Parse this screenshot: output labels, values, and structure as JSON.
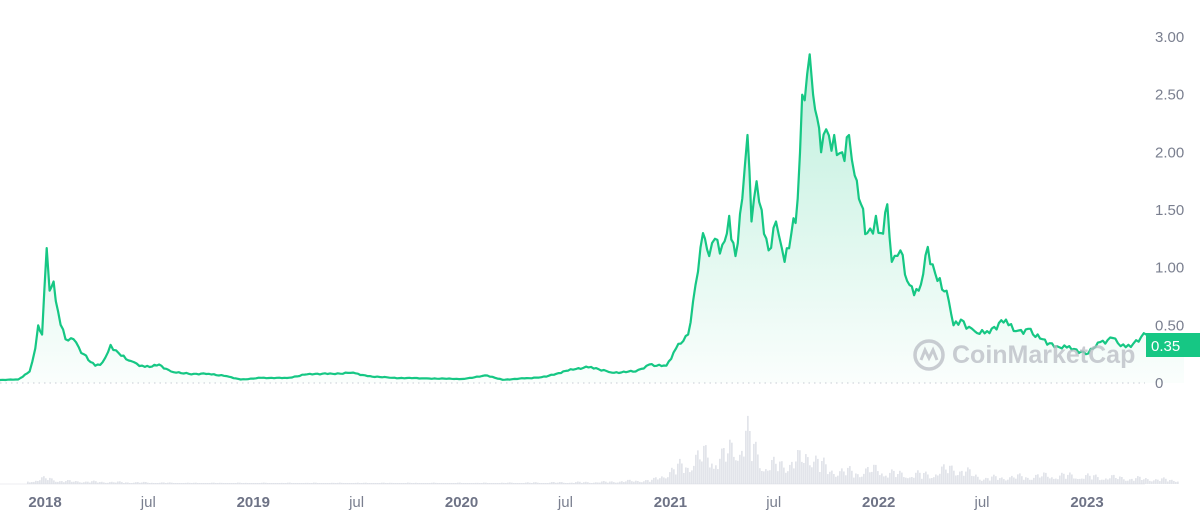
{
  "chart_data": {
    "type": "area",
    "ylabel": "",
    "xlabel": "",
    "ylim": [
      0,
      3.0
    ],
    "xlim": [
      "2017-10-01",
      "2023-06-20"
    ],
    "y_ticks": [
      "0",
      "0.50",
      "1.00",
      "1.50",
      "2.00",
      "2.50",
      "3.00"
    ],
    "y_tick_values": [
      0,
      0.5,
      1.0,
      1.5,
      2.0,
      2.5,
      3.0
    ],
    "x_ticks": [
      {
        "label": "2018",
        "date": "2018-01-01",
        "major": true
      },
      {
        "label": "jul",
        "date": "2018-07-01",
        "major": false
      },
      {
        "label": "2019",
        "date": "2019-01-01",
        "major": true
      },
      {
        "label": "jul",
        "date": "2019-07-01",
        "major": false
      },
      {
        "label": "2020",
        "date": "2020-01-01",
        "major": true
      },
      {
        "label": "jul",
        "date": "2020-07-01",
        "major": false
      },
      {
        "label": "2021",
        "date": "2021-01-01",
        "major": true
      },
      {
        "label": "jul",
        "date": "2021-07-01",
        "major": false
      },
      {
        "label": "2022",
        "date": "2022-01-01",
        "major": true
      },
      {
        "label": "jul",
        "date": "2022-07-01",
        "major": false
      },
      {
        "label": "2023",
        "date": "2023-01-01",
        "major": true
      }
    ],
    "current_price_label": "0.35",
    "grid": false,
    "legend": "none",
    "colors": {
      "line": "#16c784",
      "down": "#ea3943",
      "volume": "#d5d8e0",
      "axis_text": "#7a7f8f",
      "price_tag": "#16c784"
    },
    "price": [
      [
        "2017-10-01",
        0.025
      ],
      [
        "2017-11-15",
        0.03
      ],
      [
        "2017-12-05",
        0.1
      ],
      [
        "2017-12-15",
        0.3
      ],
      [
        "2017-12-20",
        0.5
      ],
      [
        "2017-12-27",
        0.42
      ],
      [
        "2018-01-04",
        1.17
      ],
      [
        "2018-01-09",
        0.8
      ],
      [
        "2018-01-16",
        0.88
      ],
      [
        "2018-01-24",
        0.62
      ],
      [
        "2018-02-06",
        0.38
      ],
      [
        "2018-02-20",
        0.38
      ],
      [
        "2018-03-10",
        0.25
      ],
      [
        "2018-03-30",
        0.15
      ],
      [
        "2018-04-12",
        0.18
      ],
      [
        "2018-04-26",
        0.33
      ],
      [
        "2018-05-10",
        0.26
      ],
      [
        "2018-06-01",
        0.19
      ],
      [
        "2018-06-25",
        0.14
      ],
      [
        "2018-07-20",
        0.16
      ],
      [
        "2018-08-10",
        0.1
      ],
      [
        "2018-09-10",
        0.08
      ],
      [
        "2018-10-15",
        0.08
      ],
      [
        "2018-11-15",
        0.06
      ],
      [
        "2018-12-10",
        0.03
      ],
      [
        "2019-01-15",
        0.045
      ],
      [
        "2019-03-01",
        0.043
      ],
      [
        "2019-04-10",
        0.08
      ],
      [
        "2019-05-20",
        0.08
      ],
      [
        "2019-06-25",
        0.09
      ],
      [
        "2019-07-20",
        0.06
      ],
      [
        "2019-09-01",
        0.045
      ],
      [
        "2019-11-01",
        0.04
      ],
      [
        "2020-01-01",
        0.035
      ],
      [
        "2020-02-15",
        0.065
      ],
      [
        "2020-03-13",
        0.028
      ],
      [
        "2020-04-20",
        0.04
      ],
      [
        "2020-05-20",
        0.05
      ],
      [
        "2020-06-15",
        0.08
      ],
      [
        "2020-07-10",
        0.12
      ],
      [
        "2020-08-15",
        0.14
      ],
      [
        "2020-09-20",
        0.09
      ],
      [
        "2020-11-01",
        0.1
      ],
      [
        "2020-11-25",
        0.16
      ],
      [
        "2020-12-25",
        0.15
      ],
      [
        "2021-01-15",
        0.34
      ],
      [
        "2021-02-01",
        0.42
      ],
      [
        "2021-02-14",
        0.85
      ],
      [
        "2021-02-27",
        1.3
      ],
      [
        "2021-03-10",
        1.1
      ],
      [
        "2021-03-20",
        1.25
      ],
      [
        "2021-04-02",
        1.2
      ],
      [
        "2021-04-14",
        1.45
      ],
      [
        "2021-04-25",
        1.1
      ],
      [
        "2021-05-07",
        1.6
      ],
      [
        "2021-05-16",
        2.15
      ],
      [
        "2021-05-23",
        1.4
      ],
      [
        "2021-06-01",
        1.75
      ],
      [
        "2021-06-10",
        1.5
      ],
      [
        "2021-06-22",
        1.15
      ],
      [
        "2021-07-05",
        1.4
      ],
      [
        "2021-07-20",
        1.05
      ],
      [
        "2021-08-01",
        1.3
      ],
      [
        "2021-08-12",
        1.6
      ],
      [
        "2021-08-20",
        2.5
      ],
      [
        "2021-09-02",
        2.85
      ],
      [
        "2021-09-08",
        2.5
      ],
      [
        "2021-09-15",
        2.3
      ],
      [
        "2021-09-22",
        2.0
      ],
      [
        "2021-10-01",
        2.2
      ],
      [
        "2021-10-15",
        2.15
      ],
      [
        "2021-10-29",
        2.0
      ],
      [
        "2021-11-10",
        2.15
      ],
      [
        "2021-11-20",
        1.8
      ],
      [
        "2021-12-01",
        1.55
      ],
      [
        "2021-12-12",
        1.3
      ],
      [
        "2021-12-27",
        1.45
      ],
      [
        "2022-01-05",
        1.3
      ],
      [
        "2022-01-16",
        1.55
      ],
      [
        "2022-01-24",
        1.05
      ],
      [
        "2022-02-08",
        1.15
      ],
      [
        "2022-02-24",
        0.85
      ],
      [
        "2022-03-12",
        0.8
      ],
      [
        "2022-03-28",
        1.18
      ],
      [
        "2022-04-10",
        0.95
      ],
      [
        "2022-04-30",
        0.8
      ],
      [
        "2022-05-12",
        0.5
      ],
      [
        "2022-05-25",
        0.55
      ],
      [
        "2022-06-18",
        0.45
      ],
      [
        "2022-07-10",
        0.45
      ],
      [
        "2022-08-12",
        0.55
      ],
      [
        "2022-08-30",
        0.45
      ],
      [
        "2022-09-20",
        0.47
      ],
      [
        "2022-10-15",
        0.38
      ],
      [
        "2022-11-09",
        0.32
      ],
      [
        "2022-12-01",
        0.32
      ],
      [
        "2022-12-30",
        0.25
      ],
      [
        "2023-01-20",
        0.35
      ],
      [
        "2023-02-15",
        0.39
      ],
      [
        "2023-03-10",
        0.31
      ],
      [
        "2023-04-15",
        0.42
      ],
      [
        "2023-05-10",
        0.37
      ],
      [
        "2023-06-10",
        0.27
      ],
      [
        "2023-06-20",
        0.34
      ]
    ],
    "volume_relative": [
      [
        "2017-12-01",
        0.05
      ],
      [
        "2018-01-01",
        0.12
      ],
      [
        "2018-02-01",
        0.06
      ],
      [
        "2018-05-01",
        0.04
      ],
      [
        "2018-09-01",
        0.02
      ],
      [
        "2019-06-01",
        0.02
      ],
      [
        "2020-03-01",
        0.02
      ],
      [
        "2020-09-01",
        0.04
      ],
      [
        "2020-12-01",
        0.08
      ],
      [
        "2021-02-01",
        0.45
      ],
      [
        "2021-03-01",
        0.6
      ],
      [
        "2021-04-01",
        0.55
      ],
      [
        "2021-05-15",
        1.0
      ],
      [
        "2021-06-15",
        0.35
      ],
      [
        "2021-08-15",
        0.5
      ],
      [
        "2021-09-05",
        0.65
      ],
      [
        "2021-10-01",
        0.3
      ],
      [
        "2021-11-15",
        0.25
      ],
      [
        "2022-01-01",
        0.3
      ],
      [
        "2022-02-01",
        0.2
      ],
      [
        "2022-04-01",
        0.2
      ],
      [
        "2022-05-12",
        0.35
      ],
      [
        "2022-07-01",
        0.12
      ],
      [
        "2022-09-01",
        0.15
      ],
      [
        "2022-11-10",
        0.18
      ],
      [
        "2023-01-15",
        0.15
      ],
      [
        "2023-03-15",
        0.12
      ],
      [
        "2023-06-10",
        0.08
      ]
    ]
  },
  "watermark": {
    "text": "CoinMarketCap"
  }
}
